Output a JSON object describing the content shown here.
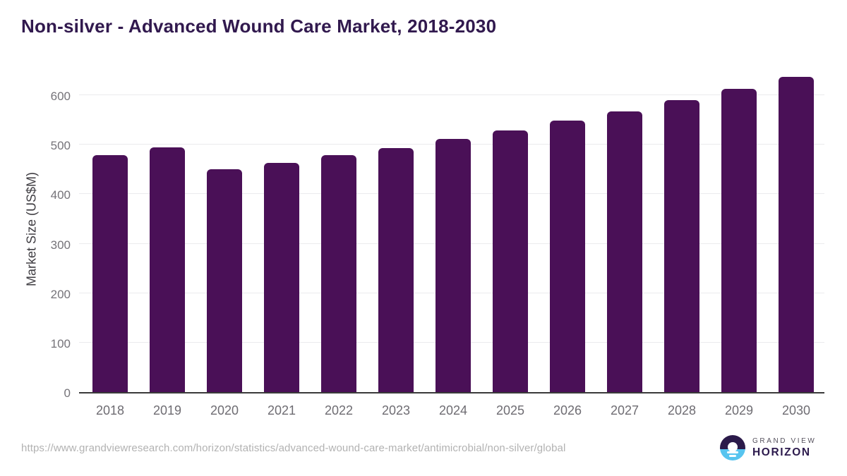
{
  "page": {
    "source_url": "https://www.grandviewresearch.com/horizon/statistics/advanced-wound-care-market/antimicrobial/non-silver/global"
  },
  "logo": {
    "brand_top": "GRAND VIEW",
    "brand_bottom": "HORIZON"
  },
  "colors": {
    "bar": "#4a1057",
    "title": "#31194e",
    "axis_line": "#3a3a3a",
    "gridline": "#ebebed",
    "tick_label": "#6e6c72",
    "url_text": "#b2b2b2",
    "logo_purple": "#2b1a4a",
    "logo_blue": "#57c4ef"
  },
  "chart_data": {
    "type": "bar",
    "title": "Non-silver - Advanced Wound Care Market, 2018-2030",
    "xlabel": "",
    "ylabel": "Market Size (US$M)",
    "categories": [
      "2018",
      "2019",
      "2020",
      "2021",
      "2022",
      "2023",
      "2024",
      "2025",
      "2026",
      "2027",
      "2028",
      "2029",
      "2030"
    ],
    "values": [
      479,
      495,
      450,
      463,
      479,
      493,
      511,
      529,
      549,
      567,
      590,
      613,
      637
    ],
    "yticks": [
      0,
      100,
      200,
      300,
      400,
      500,
      600
    ],
    "ylim": [
      0,
      650
    ],
    "grid": "horizontal-only",
    "legend": "none",
    "bar_color": "#4a1057"
  }
}
